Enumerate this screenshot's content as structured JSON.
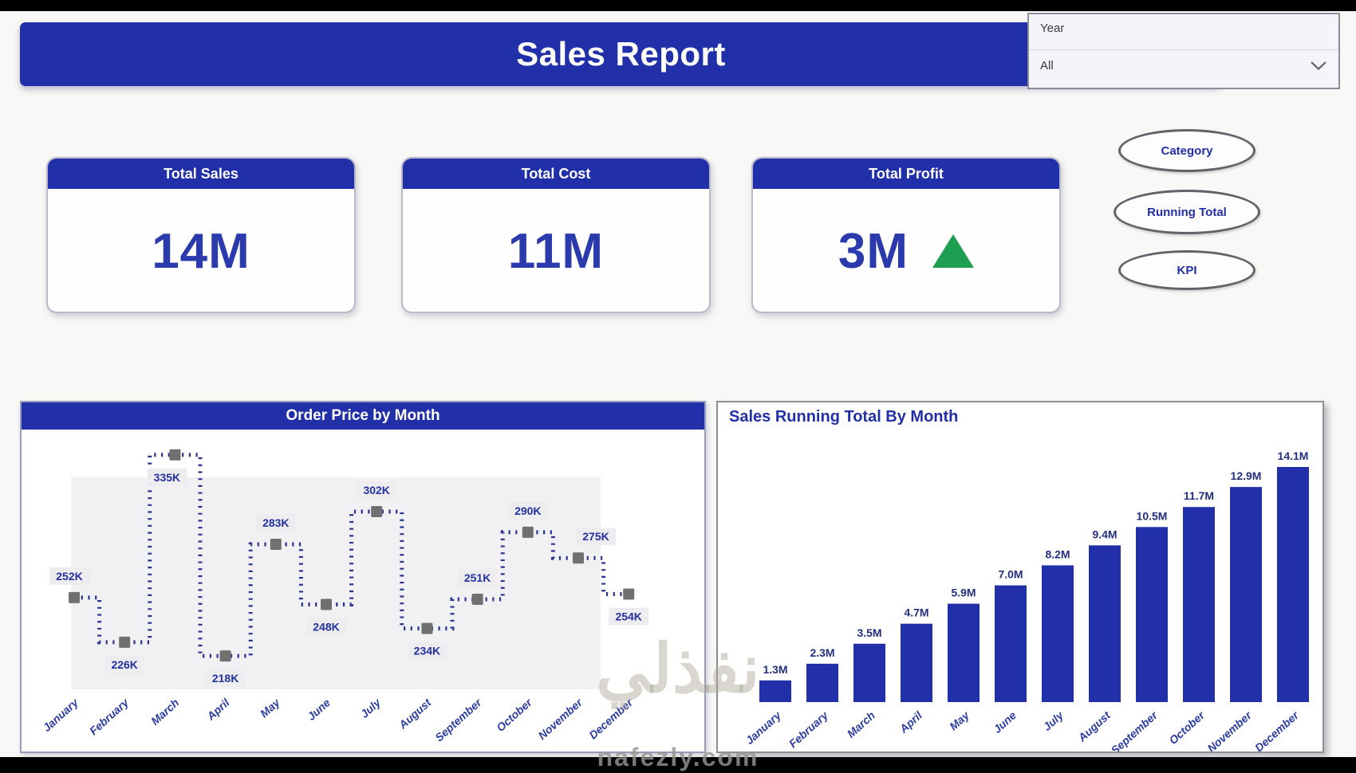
{
  "header": {
    "title": "Sales Report"
  },
  "year_slicer": {
    "label": "Year",
    "selected": "All",
    "chevron_icon": "chevron-down"
  },
  "kpi_cards": [
    {
      "title": "Total Sales",
      "value": "14M",
      "indicator": null
    },
    {
      "title": "Total Cost",
      "value": "11M",
      "indicator": null
    },
    {
      "title": "Total Profit",
      "value": "3M",
      "indicator": "up-triangle"
    }
  ],
  "nav_buttons": [
    {
      "label": "Category"
    },
    {
      "label": "Running Total"
    },
    {
      "label": "KPI"
    }
  ],
  "watermark": {
    "text_arabic": "نفذلي",
    "text_domain": "nafezly.com"
  },
  "colors": {
    "primary_blue": "#2130A8",
    "value_blue": "#2B3AAC",
    "label_blue": "#2D3CA5",
    "line_blue": "#2A3490",
    "marker_gray": "#707070",
    "profit_up_green": "#1D9E50",
    "chip_bg": "#ececef"
  },
  "chart_data": [
    {
      "type": "line",
      "title": "Order Price by Month",
      "style": "dotted-step-line-with-square-markers",
      "categories": [
        "January",
        "February",
        "March",
        "April",
        "May",
        "June",
        "July",
        "August",
        "September",
        "October",
        "November",
        "December"
      ],
      "values": [
        252,
        226,
        335,
        218,
        283,
        248,
        302,
        234,
        251,
        290,
        275,
        254
      ],
      "unit": "K",
      "labels": [
        "252K",
        "226K",
        "335K",
        "218K",
        "283K",
        "248K",
        "302K",
        "234K",
        "251K",
        "290K",
        "275K",
        "254K"
      ],
      "label_positions": [
        "above",
        "below",
        "below",
        "below",
        "above",
        "below",
        "above",
        "below",
        "above",
        "above",
        "above",
        "below"
      ],
      "ylim": [
        200,
        340
      ],
      "grid": false,
      "legend": "none"
    },
    {
      "type": "bar",
      "title": "Sales Running Total By Month",
      "categories": [
        "January",
        "February",
        "March",
        "April",
        "May",
        "June",
        "July",
        "August",
        "September",
        "October",
        "November",
        "December"
      ],
      "values": [
        1.3,
        2.3,
        3.5,
        4.7,
        5.9,
        7.0,
        8.2,
        9.4,
        10.5,
        11.7,
        12.9,
        14.1
      ],
      "unit": "M",
      "labels": [
        "1.3M",
        "2.3M",
        "3.5M",
        "4.7M",
        "5.9M",
        "7.0M",
        "8.2M",
        "9.4M",
        "10.5M",
        "11.7M",
        "12.9M",
        "14.1M"
      ],
      "ylim": [
        0,
        14.1
      ],
      "grid": false,
      "legend": "none"
    }
  ]
}
